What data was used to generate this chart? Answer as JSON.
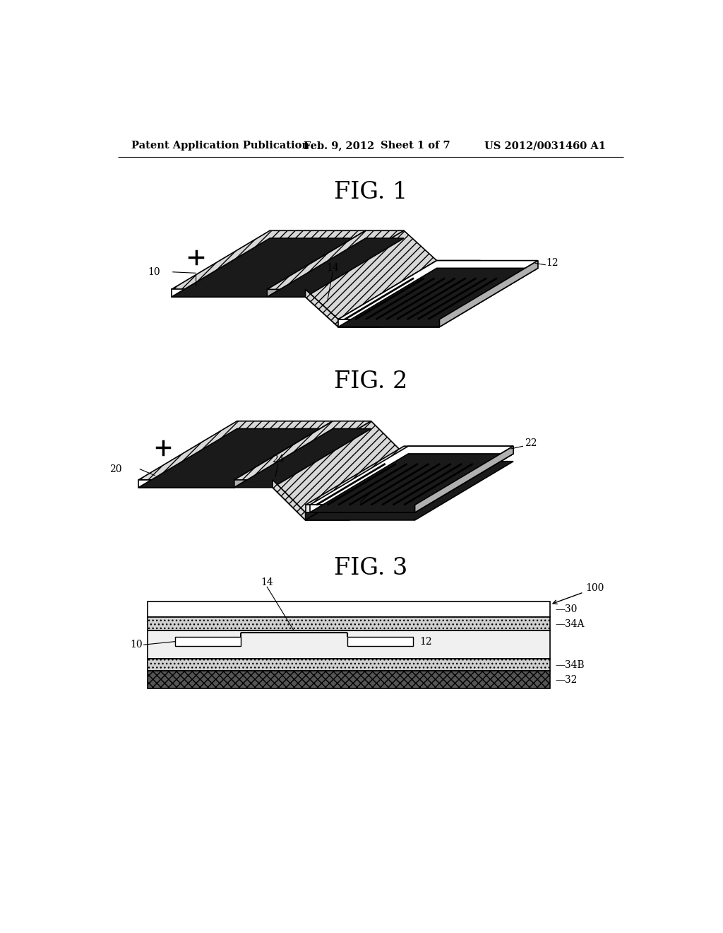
{
  "header_left": "Patent Application Publication",
  "header_center": "Feb. 9, 2012   Sheet 1 of 7",
  "header_right": "US 2012/0031460 A1",
  "fig1_title": "FIG. 1",
  "fig2_title": "FIG. 2",
  "fig3_title": "FIG. 3",
  "background_color": "#ffffff"
}
